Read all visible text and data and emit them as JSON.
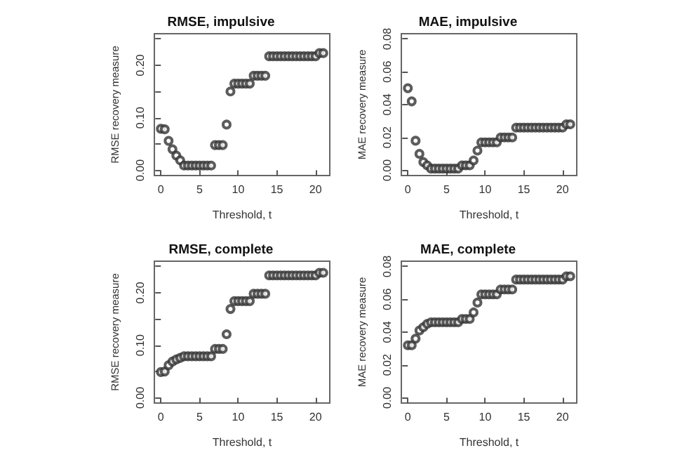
{
  "chart_data": [
    {
      "type": "scatter",
      "title": "RMSE, impulsive",
      "xlabel": "Threshold, t",
      "ylabel": "RMSE recovery measure",
      "marker": "circle",
      "grid": false,
      "x": [
        0,
        0.5,
        1,
        1.5,
        2,
        2.5,
        3,
        3.5,
        4,
        4.5,
        5,
        5.5,
        6,
        6.5,
        7,
        7.5,
        8,
        8.5,
        9,
        9.5,
        10,
        10.5,
        11,
        11.5,
        12,
        12.5,
        13,
        13.5,
        14,
        14.5,
        15,
        15.5,
        16,
        16.5,
        17,
        17.5,
        18,
        18.5,
        19,
        19.5,
        20,
        20.5,
        21
      ],
      "series": [
        {
          "color": "#333333",
          "values": [
            0.079,
            0.078,
            0.056,
            0.04,
            0.028,
            0.019,
            0.009,
            0.009,
            0.009,
            0.009,
            0.009,
            0.009,
            0.009,
            0.009,
            0.048,
            0.048,
            0.048,
            0.087,
            0.15,
            0.165,
            0.165,
            0.165,
            0.165,
            0.165,
            0.18,
            0.18,
            0.18,
            0.18,
            0.217,
            0.217,
            0.217,
            0.217,
            0.217,
            0.217,
            0.217,
            0.217,
            0.217,
            0.217,
            0.217,
            0.217,
            0.217,
            0.223,
            0.223
          ]
        }
      ],
      "xlim": [
        -0.84,
        21.84
      ],
      "xticks": [
        0,
        5,
        10,
        15,
        20
      ],
      "ylim": [
        -0.01,
        0.26
      ],
      "yticks": [
        {
          "value": 0,
          "label": "0.00"
        },
        {
          "value": 0.05,
          "label": null
        },
        {
          "value": 0.1,
          "label": "0.10"
        },
        {
          "value": 0.15,
          "label": null
        },
        {
          "value": 0.2,
          "label": "0.20"
        },
        {
          "value": 0.25,
          "label": null
        }
      ]
    },
    {
      "type": "scatter",
      "title": "MAE, impulsive",
      "xlabel": "Threshold, t",
      "ylabel": "MAE recovery measure",
      "marker": "circle",
      "grid": false,
      "x": [
        0,
        0.5,
        1,
        1.5,
        2,
        2.5,
        3,
        3.5,
        4,
        4.5,
        5,
        5.5,
        6,
        6.5,
        7,
        7.5,
        8,
        8.5,
        9,
        9.5,
        10,
        10.5,
        11,
        11.5,
        12,
        12.5,
        13,
        13.5,
        14,
        14.5,
        15,
        15.5,
        16,
        16.5,
        17,
        17.5,
        18,
        18.5,
        19,
        19.5,
        20,
        20.5,
        21
      ],
      "series": [
        {
          "color": "#333333",
          "values": [
            0.05,
            0.042,
            0.018,
            0.01,
            0.005,
            0.003,
            0.001,
            0.001,
            0.001,
            0.001,
            0.001,
            0.001,
            0.001,
            0.001,
            0.003,
            0.003,
            0.003,
            0.006,
            0.012,
            0.017,
            0.017,
            0.017,
            0.017,
            0.017,
            0.02,
            0.02,
            0.02,
            0.02,
            0.026,
            0.026,
            0.026,
            0.026,
            0.026,
            0.026,
            0.026,
            0.026,
            0.026,
            0.026,
            0.026,
            0.026,
            0.026,
            0.028,
            0.028
          ]
        }
      ],
      "xlim": [
        -0.84,
        21.84
      ],
      "xticks": [
        0,
        5,
        10,
        15,
        20
      ],
      "ylim": [
        -0.0032,
        0.0832
      ],
      "yticks": [
        {
          "value": 0,
          "label": "0.00"
        },
        {
          "value": 0.02,
          "label": "0.02"
        },
        {
          "value": 0.04,
          "label": "0.04"
        },
        {
          "value": 0.06,
          "label": "0.06"
        },
        {
          "value": 0.08,
          "label": "0.08"
        }
      ]
    },
    {
      "type": "scatter",
      "title": "RMSE, complete",
      "xlabel": "Threshold, t",
      "ylabel": "RMSE recovery measure",
      "marker": "circle",
      "grid": false,
      "x": [
        0,
        0.5,
        1,
        1.5,
        2,
        2.5,
        3,
        3.5,
        4,
        4.5,
        5,
        5.5,
        6,
        6.5,
        7,
        7.5,
        8,
        8.5,
        9,
        9.5,
        10,
        10.5,
        11,
        11.5,
        12,
        12.5,
        13,
        13.5,
        14,
        14.5,
        15,
        15.5,
        16,
        16.5,
        17,
        17.5,
        18,
        18.5,
        19,
        19.5,
        20,
        20.5,
        21
      ],
      "series": [
        {
          "color": "#333333",
          "values": [
            0.049,
            0.05,
            0.062,
            0.069,
            0.073,
            0.076,
            0.079,
            0.079,
            0.079,
            0.079,
            0.079,
            0.079,
            0.079,
            0.079,
            0.093,
            0.093,
            0.093,
            0.121,
            0.169,
            0.184,
            0.184,
            0.184,
            0.184,
            0.184,
            0.198,
            0.198,
            0.198,
            0.198,
            0.233,
            0.233,
            0.233,
            0.233,
            0.233,
            0.233,
            0.233,
            0.233,
            0.233,
            0.233,
            0.233,
            0.233,
            0.233,
            0.238,
            0.238
          ]
        }
      ],
      "xlim": [
        -0.84,
        21.84
      ],
      "xticks": [
        0,
        5,
        10,
        15,
        20
      ],
      "ylim": [
        -0.01,
        0.26
      ],
      "yticks": [
        {
          "value": 0,
          "label": "0.00"
        },
        {
          "value": 0.05,
          "label": null
        },
        {
          "value": 0.1,
          "label": "0.10"
        },
        {
          "value": 0.15,
          "label": null
        },
        {
          "value": 0.2,
          "label": "0.20"
        },
        {
          "value": 0.25,
          "label": null
        }
      ]
    },
    {
      "type": "scatter",
      "title": "MAE, complete",
      "xlabel": "Threshold, t",
      "ylabel": "MAE recovery measure",
      "marker": "circle",
      "grid": false,
      "x": [
        0,
        0.5,
        1,
        1.5,
        2,
        2.5,
        3,
        3.5,
        4,
        4.5,
        5,
        5.5,
        6,
        6.5,
        7,
        7.5,
        8,
        8.5,
        9,
        9.5,
        10,
        10.5,
        11,
        11.5,
        12,
        12.5,
        13,
        13.5,
        14,
        14.5,
        15,
        15.5,
        16,
        16.5,
        17,
        17.5,
        18,
        18.5,
        19,
        19.5,
        20,
        20.5,
        21
      ],
      "series": [
        {
          "color": "#333333",
          "values": [
            0.032,
            0.032,
            0.036,
            0.041,
            0.043,
            0.045,
            0.046,
            0.046,
            0.046,
            0.046,
            0.046,
            0.046,
            0.046,
            0.046,
            0.048,
            0.048,
            0.048,
            0.052,
            0.058,
            0.063,
            0.063,
            0.063,
            0.063,
            0.063,
            0.066,
            0.066,
            0.066,
            0.066,
            0.072,
            0.072,
            0.072,
            0.072,
            0.072,
            0.072,
            0.072,
            0.072,
            0.072,
            0.072,
            0.072,
            0.072,
            0.072,
            0.074,
            0.074
          ]
        }
      ],
      "xlim": [
        -0.84,
        21.84
      ],
      "xticks": [
        0,
        5,
        10,
        15,
        20
      ],
      "ylim": [
        -0.0032,
        0.0832
      ],
      "yticks": [
        {
          "value": 0,
          "label": "0.00"
        },
        {
          "value": 0.02,
          "label": "0.02"
        },
        {
          "value": 0.04,
          "label": "0.04"
        },
        {
          "value": 0.06,
          "label": "0.06"
        },
        {
          "value": 0.08,
          "label": "0.08"
        }
      ]
    }
  ]
}
